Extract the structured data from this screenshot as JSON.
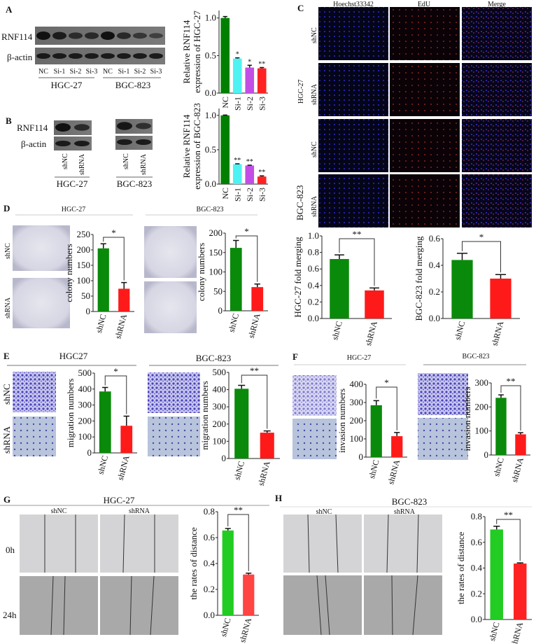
{
  "panels": {
    "A": {
      "letter": "A",
      "rows": [
        "RNF114",
        "β-actin"
      ],
      "lanes": [
        "NC",
        "Si-1",
        "Si-2",
        "Si-3",
        "NC",
        "Si-1",
        "Si-2",
        "Si-3"
      ],
      "groups": [
        "HGC-27",
        "BGC-823"
      ]
    },
    "B": {
      "letter": "B",
      "rows": [
        "RNF114",
        "β-actin"
      ],
      "lanes": [
        "shNC",
        "shRNA"
      ],
      "groups": [
        "HGC-27",
        "BGC-823"
      ]
    },
    "C": {
      "letter": "C",
      "columns": [
        "Hoechst33342",
        "EdU",
        "Merge"
      ],
      "rows": [
        "shNC",
        "shRNA",
        "shNC",
        "shRNA"
      ],
      "groups": [
        "HGC-27",
        "BGC-823"
      ]
    },
    "D": {
      "letter": "D",
      "groups": [
        "HGC-27",
        "BGC-823"
      ],
      "rows": [
        "shNC",
        "shRNA"
      ]
    },
    "E": {
      "letter": "E",
      "groups": [
        "HGC27",
        "BGC-823"
      ],
      "rows": [
        "shNC",
        "shRNA"
      ]
    },
    "F": {
      "letter": "F",
      "groups": [
        "HGC-27",
        "BGC-823"
      ]
    },
    "G": {
      "letter": "G",
      "title": "HGC-27",
      "columns": [
        "shNC",
        "shRNA"
      ],
      "rows": [
        "0h",
        "24h"
      ]
    },
    "H": {
      "letter": "H",
      "title": "BGC-823",
      "columns": [
        "shNC",
        "shRNA"
      ]
    }
  },
  "chart_data": [
    {
      "type": "bar",
      "ylabel": [
        "Relative RNF114",
        "expression of HGC-27"
      ],
      "categories": [
        "NC",
        "Si-1",
        "Si-2",
        "Si-3"
      ],
      "values": [
        1.0,
        0.46,
        0.34,
        0.33
      ],
      "error": [
        0.02,
        0.01,
        0.03,
        0.01
      ],
      "significance": [
        "",
        "*",
        "*",
        "**"
      ],
      "ylim": [
        0,
        1.1
      ],
      "ticks": [
        "0.0",
        "0.5",
        "1.0"
      ],
      "tick_values": [
        0,
        0.5,
        1.0
      ],
      "colors": [
        "#008000",
        "#4ff2f2",
        "#c24ee6",
        "#ff2222"
      ]
    },
    {
      "type": "bar",
      "ylabel": [
        "Relative RNF114",
        "expression of BGC-823"
      ],
      "categories": [
        "NC",
        "Si-1",
        "Si-2",
        "Si-3"
      ],
      "values": [
        1.0,
        0.29,
        0.27,
        0.11
      ],
      "error": [
        0.005,
        0.005,
        0.005,
        0.01
      ],
      "significance": [
        "",
        "**",
        "**",
        "**"
      ],
      "ylim": [
        0,
        1.1
      ],
      "ticks": [
        "0.0",
        "0.5",
        "1.0"
      ],
      "tick_values": [
        0,
        0.5,
        1.0
      ],
      "colors": [
        "#008000",
        "#4ff2f2",
        "#c24ee6",
        "#ff2222"
      ]
    },
    {
      "type": "bar",
      "ylabel": [
        "colony numbers"
      ],
      "categories": [
        "shNC",
        "shRNA"
      ],
      "values": [
        205,
        74
      ],
      "error": [
        15,
        20
      ],
      "significance": "*",
      "ylim": [
        0,
        250
      ],
      "ticks": [
        "0",
        "50",
        "100",
        "150",
        "200",
        "250"
      ],
      "tick_values": [
        0,
        50,
        100,
        150,
        200,
        250
      ],
      "colors": [
        "#0a8a0a",
        "#ff1a1a"
      ]
    },
    {
      "type": "bar",
      "ylabel": [
        "colony numbers"
      ],
      "categories": [
        "shNC",
        "shRNA"
      ],
      "values": [
        162,
        61
      ],
      "error": [
        19,
        8
      ],
      "significance": "*",
      "ylim": [
        0,
        200
      ],
      "ticks": [
        "0",
        "50",
        "100",
        "150",
        "200"
      ],
      "tick_values": [
        0,
        50,
        100,
        150,
        200
      ],
      "colors": [
        "#0a8a0a",
        "#ff1a1a"
      ]
    },
    {
      "type": "bar",
      "ylabel": [
        "HGC-27 fold merging"
      ],
      "categories": [
        "shNC",
        "shRNA"
      ],
      "values": [
        0.72,
        0.34
      ],
      "error": [
        0.05,
        0.03
      ],
      "significance": "**",
      "ylim": [
        0,
        1.0
      ],
      "ticks": [
        "0.0",
        "0.2",
        "0.4",
        "0.6",
        "0.8",
        "1.0"
      ],
      "tick_values": [
        0,
        0.2,
        0.4,
        0.6,
        0.8,
        1.0
      ],
      "colors": [
        "#0a8a0a",
        "#ff1a1a"
      ]
    },
    {
      "type": "bar",
      "ylabel": [
        "BGC-823 fold merging"
      ],
      "categories": [
        "shNC",
        "shRNA"
      ],
      "values": [
        0.44,
        0.3
      ],
      "error": [
        0.05,
        0.03
      ],
      "significance": "*",
      "ylim": [
        0,
        0.6
      ],
      "ticks": [
        "0.0",
        "0.2",
        "0.4",
        "0.6"
      ],
      "tick_values": [
        0,
        0.2,
        0.4,
        0.6
      ],
      "colors": [
        "#0a8a0a",
        "#ff1a1a"
      ]
    },
    {
      "type": "bar",
      "ylabel": [
        "migration numbers"
      ],
      "categories": [
        "shNC",
        "shRNA"
      ],
      "values": [
        385,
        170
      ],
      "error": [
        25,
        60
      ],
      "significance": "*",
      "ylim": [
        0,
        500
      ],
      "ticks": [
        "0",
        "100",
        "200",
        "300",
        "400",
        "500"
      ],
      "tick_values": [
        0,
        100,
        200,
        300,
        400,
        500
      ],
      "colors": [
        "#0a8a0a",
        "#ff1a1a"
      ]
    },
    {
      "type": "bar",
      "ylabel": [
        "migration numbers"
      ],
      "categories": [
        "shNC",
        "shRNA"
      ],
      "values": [
        405,
        150
      ],
      "error": [
        20,
        10
      ],
      "significance": "**",
      "ylim": [
        0,
        500
      ],
      "ticks": [
        "0",
        "100",
        "200",
        "300",
        "400",
        "500"
      ],
      "tick_values": [
        0,
        100,
        200,
        300,
        400,
        500
      ],
      "colors": [
        "#0a8a0a",
        "#ff1a1a"
      ]
    },
    {
      "type": "bar",
      "ylabel": [
        "invasion numbers"
      ],
      "categories": [
        "shNC",
        "shRNA"
      ],
      "values": [
        285,
        115
      ],
      "error": [
        25,
        20
      ],
      "significance": "*",
      "ylim": [
        0,
        400
      ],
      "ticks": [
        "0",
        "100",
        "200",
        "300",
        "400"
      ],
      "tick_values": [
        0,
        100,
        200,
        300,
        400
      ],
      "colors": [
        "#0a8a0a",
        "#ff1a1a"
      ]
    },
    {
      "type": "bar",
      "ylabel": [
        "invasion numbers"
      ],
      "categories": [
        "shNC",
        "shRNA"
      ],
      "values": [
        238,
        86
      ],
      "error": [
        12,
        7
      ],
      "significance": "**",
      "ylim": [
        0,
        300
      ],
      "ticks": [
        "0",
        "100",
        "200",
        "300"
      ],
      "tick_values": [
        0,
        100,
        200,
        300
      ],
      "colors": [
        "#0a8a0a",
        "#ff1a1a"
      ]
    },
    {
      "type": "bar",
      "ylabel": [
        "the rates of distance"
      ],
      "categories": [
        "shNC",
        "shRNA"
      ],
      "values": [
        0.655,
        0.315
      ],
      "error": [
        0.015,
        0.01
      ],
      "significance": "**",
      "ylim": [
        0,
        0.8
      ],
      "ticks": [
        "0.0",
        "0.2",
        "0.4",
        "0.6",
        "0.8"
      ],
      "tick_values": [
        0,
        0.2,
        0.4,
        0.6,
        0.8
      ],
      "colors": [
        "#22cc22",
        "#ff4444"
      ]
    },
    {
      "type": "bar",
      "ylabel": [
        "the rates of distance"
      ],
      "categories": [
        "shNC",
        "shRNA"
      ],
      "values": [
        0.7,
        0.435
      ],
      "error": [
        0.025,
        0.005
      ],
      "significance": "**",
      "ylim": [
        0,
        0.8
      ],
      "ticks": [
        "0.0",
        "0.2",
        "0.4",
        "0.6",
        "0.8"
      ],
      "tick_values": [
        0,
        0.2,
        0.4,
        0.6,
        0.8
      ],
      "colors": [
        "#22cc22",
        "#ff2222"
      ]
    }
  ]
}
